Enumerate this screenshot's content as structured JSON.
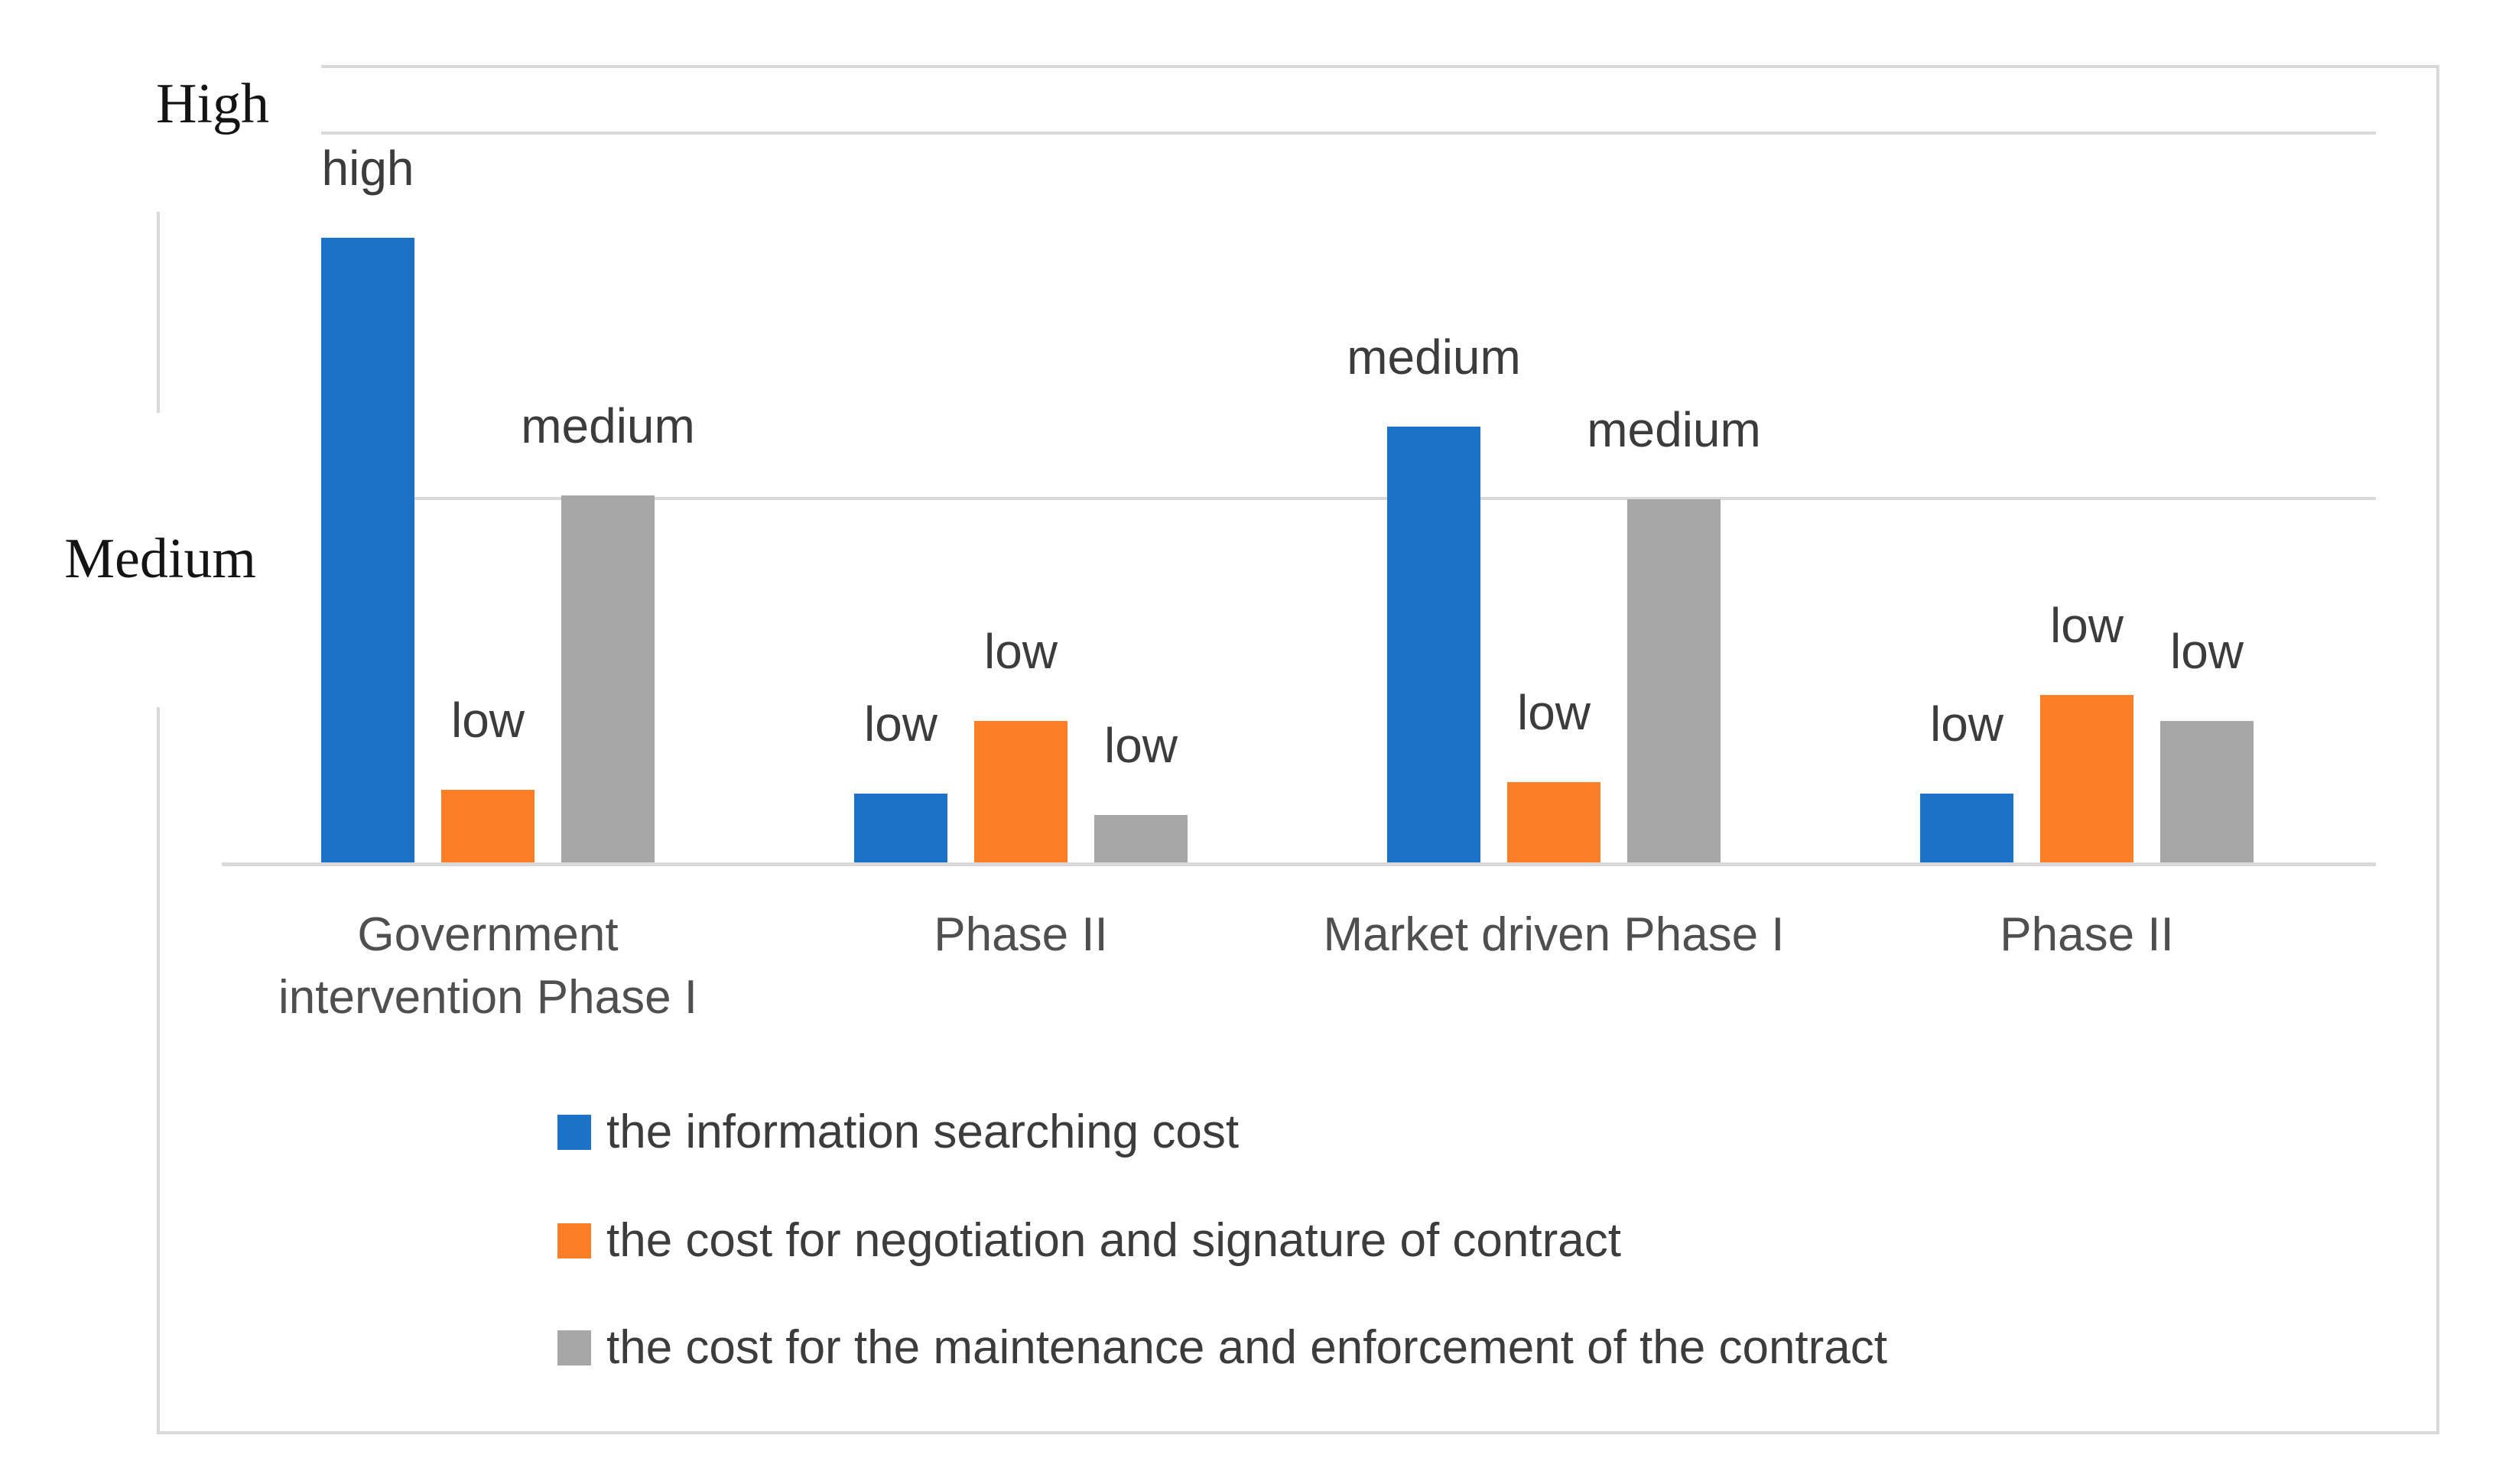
{
  "chart_data": {
    "type": "bar",
    "title": "",
    "categories": [
      {
        "label": "Government intervention Phase I",
        "lines": [
          "Government",
          "intervention Phase I"
        ]
      },
      {
        "label": "Phase II",
        "lines": [
          "Phase II"
        ]
      },
      {
        "label": "Market driven Phase I",
        "lines": [
          "Market driven Phase I"
        ]
      },
      {
        "label": "Phase II",
        "lines": [
          "Phase II"
        ]
      }
    ],
    "y_axis": {
      "labels": {
        "high": "High",
        "medium": "Medium"
      },
      "unit_definition": "qualitative scale: Medium gridline = 1, High gridline = 2",
      "range_units": [
        0,
        2.19
      ],
      "gridlines_at_units": [
        0,
        1,
        2
      ]
    },
    "series": [
      {
        "name": "the information searching cost",
        "color": "#1b72c7",
        "values": [
          1.72,
          0.19,
          1.2,
          0.19
        ],
        "point_labels": [
          "high",
          "low",
          "medium",
          "low"
        ]
      },
      {
        "name": "the cost for negotiation and signature of contract",
        "color": "#fc7e26",
        "values": [
          0.2,
          0.39,
          0.22,
          0.46
        ],
        "point_labels": [
          "low",
          "low",
          "low",
          "low"
        ]
      },
      {
        "name": "the cost for the maintenance and enforcement of the contract",
        "color": "#a7a7a7",
        "values": [
          1.01,
          0.13,
          1.0,
          0.39
        ],
        "point_labels": [
          "medium",
          "low",
          "medium",
          "low"
        ]
      }
    ],
    "legend_position": "bottom-left",
    "grid": true,
    "frame_color": "#d9d9d9"
  }
}
